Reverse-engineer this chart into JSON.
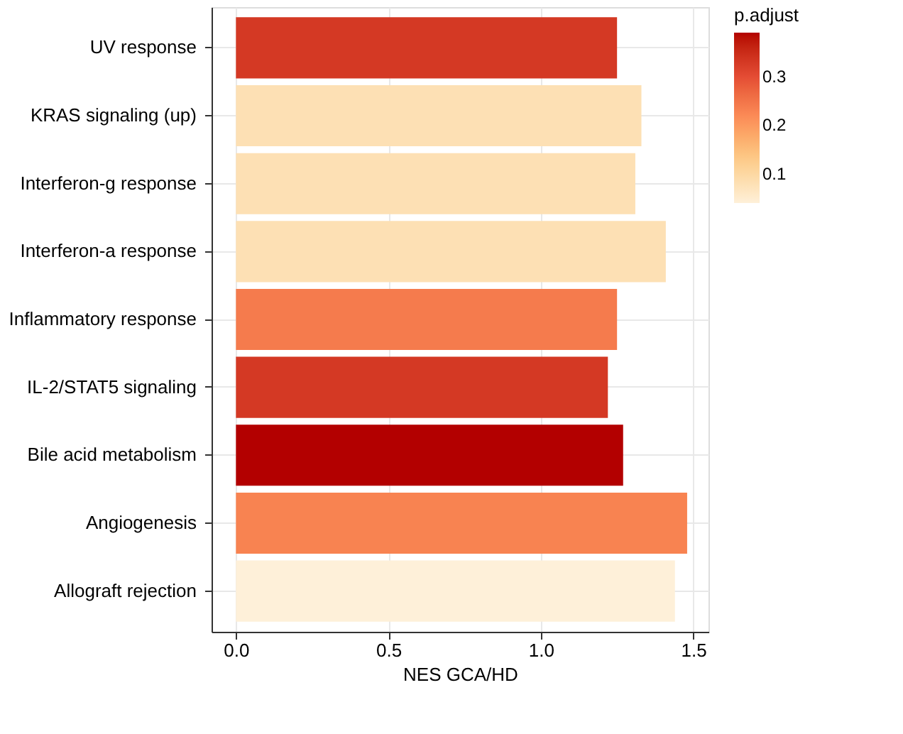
{
  "chart_data": {
    "type": "bar",
    "orientation": "horizontal",
    "categories": [
      "UV response",
      "KRAS signaling (up)",
      "Interferon-g response",
      "Interferon-a response",
      "Inflammatory response",
      "IL-2/STAT5 signaling",
      "Bile acid metabolism",
      "Angiogenesis",
      "Allograft rejection"
    ],
    "values": [
      1.25,
      1.33,
      1.31,
      1.41,
      1.25,
      1.22,
      1.27,
      1.48,
      1.44
    ],
    "cvalues": [
      0.33,
      0.08,
      0.08,
      0.08,
      0.24,
      0.33,
      0.39,
      0.23,
      0.04
    ],
    "clabel": "p.adjust",
    "clim": [
      0.04,
      0.39
    ],
    "cticks": [
      0.1,
      0.2,
      0.3
    ],
    "xlabel": "NES GCA/HD",
    "xlim": [
      -0.08,
      1.55
    ],
    "xticks": [
      {
        "value": 0,
        "label": "0.0"
      },
      0.5,
      {
        "value": 1,
        "label": "1.0"
      },
      1.5
    ],
    "grid": true
  }
}
